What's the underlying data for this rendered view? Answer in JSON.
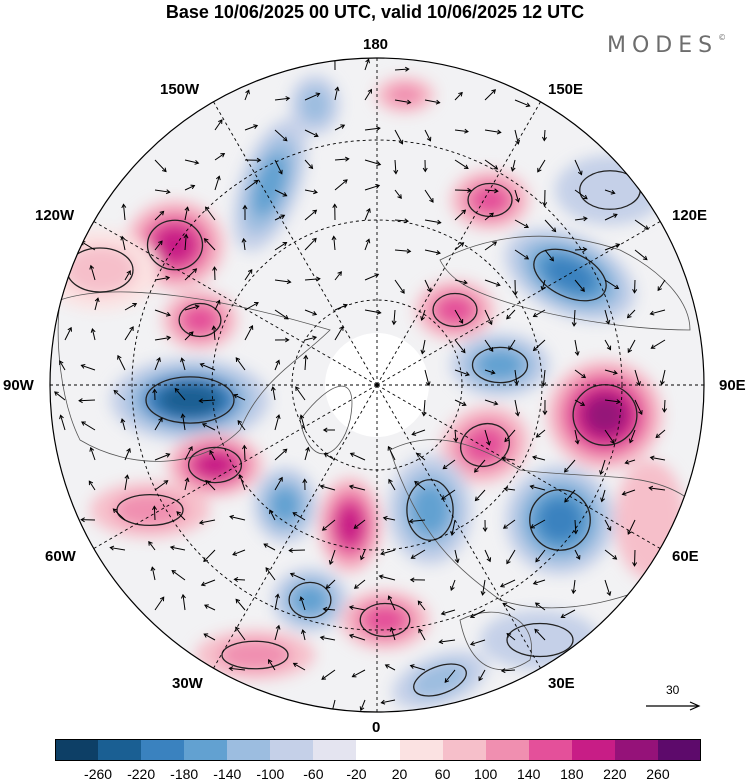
{
  "title": "Base 10/06/2025 00 UTC, valid 10/06/2025 12 UTC",
  "brand": {
    "text": "MODES",
    "mark": "©"
  },
  "longitude_labels": {
    "top": "180",
    "bottom": "0",
    "left": "90W",
    "right": "90E",
    "upper_left_1": "150W",
    "upper_left_2": "120W",
    "upper_right_1": "150E",
    "upper_right_2": "120E",
    "lower_left_1": "60W",
    "lower_left_2": "30W",
    "lower_right_1": "60E",
    "lower_right_2": "30E"
  },
  "reference_vector": {
    "value": "30"
  },
  "colorbar": {
    "colors": [
      "#0d3f66",
      "#1a5f93",
      "#3a82bf",
      "#62a1d1",
      "#9cbde0",
      "#c5d0e8",
      "#e4e4f0",
      "#ffffff",
      "#fbe2e2",
      "#f6bfca",
      "#f08fb0",
      "#e4509a",
      "#c81d86",
      "#951279",
      "#5d0a6b"
    ],
    "labels": [
      "-260",
      "-220",
      "-180",
      "-140",
      "-100",
      "-60",
      "-20",
      "20",
      "60",
      "100",
      "140",
      "180",
      "220",
      "260"
    ]
  },
  "map_colors": {
    "land_outline": "#555555",
    "land_fill": "#e9e9e9",
    "ocean": "#ffffff",
    "grid": "#000000"
  }
}
